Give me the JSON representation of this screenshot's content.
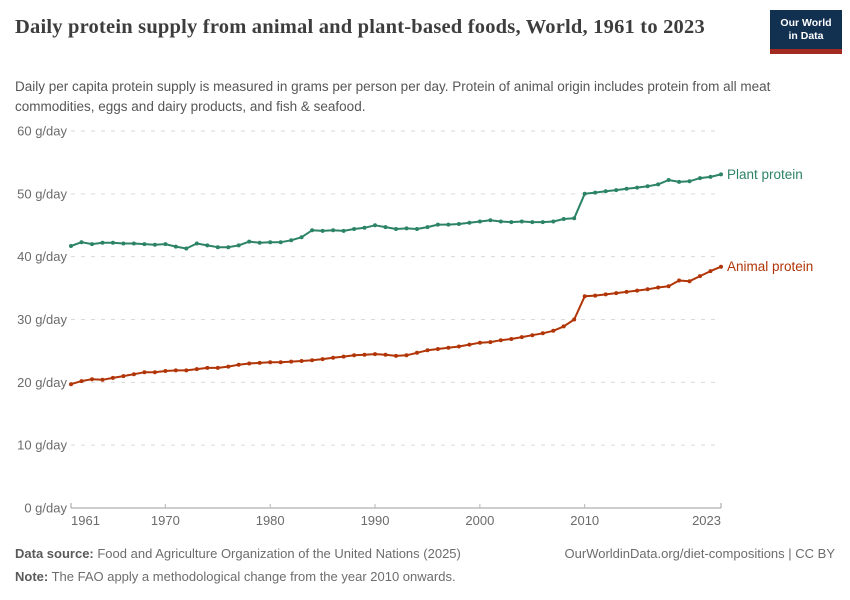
{
  "header": {
    "title": "Daily protein supply from animal and plant-based foods, World, 1961 to 2023",
    "logo_line1": "Our World",
    "logo_line2": "in Data",
    "logo_colors": {
      "background": "#123050",
      "stripe": "#a22b21"
    }
  },
  "subtitle": "Daily per capita protein supply is measured in grams per person per day. Protein of animal origin includes protein from all meat commodities, eggs and dairy products, and fish & seafood.",
  "chart_data": {
    "type": "line",
    "title": "Daily protein supply from animal and plant-based foods, World, 1961 to 2023",
    "unit": "g/day",
    "xlim": [
      1961,
      2023
    ],
    "ylim": [
      0,
      60
    ],
    "grid": true,
    "legend_position": "line-end-labels",
    "yticks": [
      {
        "value": 60,
        "label": "60 g/day"
      },
      {
        "value": 50,
        "label": "50 g/day"
      },
      {
        "value": 40,
        "label": "40 g/day"
      },
      {
        "value": 30,
        "label": "30 g/day"
      },
      {
        "value": 20,
        "label": "20 g/day"
      },
      {
        "value": 10,
        "label": "10 g/day"
      },
      {
        "value": 0,
        "label": "0 g/day"
      }
    ],
    "xticks": [
      {
        "value": 1961,
        "label": "1961"
      },
      {
        "value": 1970,
        "label": "1970"
      },
      {
        "value": 1980,
        "label": "1980"
      },
      {
        "value": 1990,
        "label": "1990"
      },
      {
        "value": 2000,
        "label": "2000"
      },
      {
        "value": 2010,
        "label": "2010"
      },
      {
        "value": 2023,
        "label": "2023"
      }
    ],
    "years": [
      1961,
      1962,
      1963,
      1964,
      1965,
      1966,
      1967,
      1968,
      1969,
      1970,
      1971,
      1972,
      1973,
      1974,
      1975,
      1976,
      1977,
      1978,
      1979,
      1980,
      1981,
      1982,
      1983,
      1984,
      1985,
      1986,
      1987,
      1988,
      1989,
      1990,
      1991,
      1992,
      1993,
      1994,
      1995,
      1996,
      1997,
      1998,
      1999,
      2000,
      2001,
      2002,
      2003,
      2004,
      2005,
      2006,
      2007,
      2008,
      2009,
      2010,
      2011,
      2012,
      2013,
      2014,
      2015,
      2016,
      2017,
      2018,
      2019,
      2020,
      2021,
      2022,
      2023
    ],
    "series": [
      {
        "name": "Plant protein",
        "color": "#2c8465",
        "values": [
          41.7,
          42.3,
          42.0,
          42.2,
          42.2,
          42.1,
          42.1,
          42.0,
          41.9,
          42.0,
          41.6,
          41.3,
          42.1,
          41.8,
          41.5,
          41.5,
          41.8,
          42.4,
          42.2,
          42.3,
          42.3,
          42.6,
          43.1,
          44.2,
          44.1,
          44.2,
          44.1,
          44.4,
          44.6,
          45.0,
          44.7,
          44.4,
          44.5,
          44.4,
          44.7,
          45.1,
          45.1,
          45.2,
          45.4,
          45.6,
          45.8,
          45.6,
          45.5,
          45.6,
          45.5,
          45.5,
          45.6,
          46.0,
          46.1,
          50.0,
          50.2,
          50.4,
          50.6,
          50.8,
          51.0,
          51.2,
          51.5,
          52.2,
          51.9,
          52.0,
          52.5,
          52.7,
          53.1
        ]
      },
      {
        "name": "Animal protein",
        "color": "#b13507",
        "values": [
          19.7,
          20.2,
          20.5,
          20.4,
          20.7,
          21.0,
          21.3,
          21.6,
          21.6,
          21.8,
          21.9,
          21.9,
          22.1,
          22.3,
          22.3,
          22.5,
          22.8,
          23.0,
          23.1,
          23.2,
          23.2,
          23.3,
          23.4,
          23.5,
          23.7,
          23.9,
          24.1,
          24.3,
          24.4,
          24.5,
          24.4,
          24.2,
          24.3,
          24.7,
          25.1,
          25.3,
          25.5,
          25.7,
          26.0,
          26.3,
          26.4,
          26.7,
          26.9,
          27.2,
          27.5,
          27.8,
          28.2,
          28.9,
          30.0,
          33.7,
          33.8,
          34.0,
          34.2,
          34.4,
          34.6,
          34.8,
          35.1,
          35.3,
          36.2,
          36.1,
          36.9,
          37.7,
          38.4
        ]
      }
    ]
  },
  "footer": {
    "source_label": "Data source:",
    "source_text": " Food and Agriculture Organization of the United Nations (2025)",
    "note_label": "Note:",
    "note_text": " The FAO apply a methodological change from the year 2010 onwards.",
    "attribution": "OurWorldinData.org/diet-compositions | CC BY"
  }
}
